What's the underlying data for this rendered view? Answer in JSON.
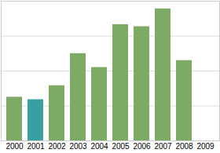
{
  "chart_data": {
    "type": "bar",
    "categories": [
      "2000",
      "2001",
      "2002",
      "2003",
      "2004",
      "2005",
      "2006",
      "2007",
      "2008",
      "2009"
    ],
    "values": [
      1.25,
      1.18,
      1.58,
      2.5,
      2.1,
      3.33,
      3.27,
      3.78,
      2.3,
      null
    ],
    "colors": [
      "#7daa65",
      "#38a0a0",
      "#7daa65",
      "#7daa65",
      "#7daa65",
      "#7daa65",
      "#7daa65",
      "#7daa65",
      "#7daa65",
      "#7daa65"
    ],
    "ylim": [
      0,
      4
    ],
    "yticks": [
      0,
      1,
      2,
      3,
      4
    ],
    "grid": true,
    "tick_labels": "x"
  }
}
